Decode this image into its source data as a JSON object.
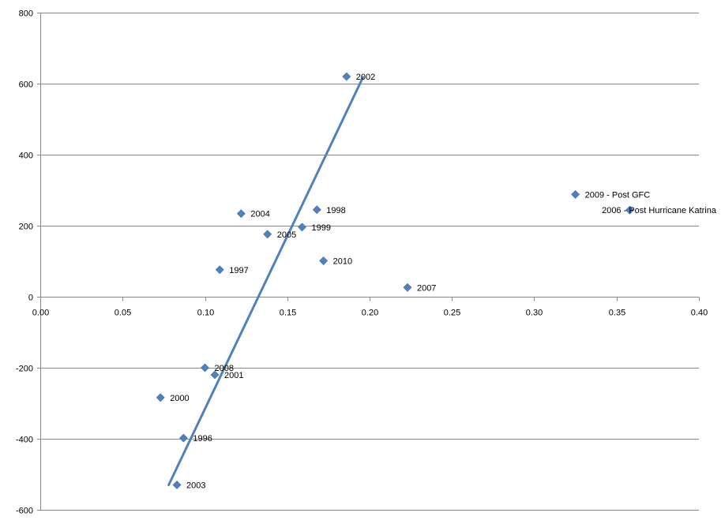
{
  "chart_data": {
    "type": "scatter",
    "xlim": [
      0,
      0.4
    ],
    "ylim": [
      -600,
      800
    ],
    "x_ticks": [
      "0.00",
      "0.05",
      "0.10",
      "0.15",
      "0.20",
      "0.25",
      "0.30",
      "0.35",
      "0.40"
    ],
    "y_ticks": [
      "800",
      "600",
      "400",
      "200",
      "0",
      "-200",
      "-400",
      "-600"
    ],
    "grid": "horizontal",
    "marker_color": "#4F81BD",
    "trendline_color": "#4F81BD",
    "points": [
      {
        "x": 0.186,
        "y": 620,
        "label": "2002"
      },
      {
        "x": 0.325,
        "y": 288,
        "label": "2009 - Post GFC"
      },
      {
        "x": 0.358,
        "y": 244,
        "label": "2006 - Post Hurricane Katrina"
      },
      {
        "x": 0.122,
        "y": 234,
        "label": "2004"
      },
      {
        "x": 0.168,
        "y": 245,
        "label": "1998"
      },
      {
        "x": 0.159,
        "y": 196,
        "label": "1999"
      },
      {
        "x": 0.138,
        "y": 176,
        "label": "2005"
      },
      {
        "x": 0.172,
        "y": 101,
        "label": "2010"
      },
      {
        "x": 0.109,
        "y": 76,
        "label": "1997"
      },
      {
        "x": 0.223,
        "y": 26,
        "label": "2007"
      },
      {
        "x": 0.1,
        "y": -200,
        "label": "2008"
      },
      {
        "x": 0.106,
        "y": -220,
        "label": "2001"
      },
      {
        "x": 0.073,
        "y": -284,
        "label": "2000"
      },
      {
        "x": 0.087,
        "y": -398,
        "label": "1996"
      },
      {
        "x": 0.083,
        "y": -530,
        "label": "2003"
      }
    ],
    "trendline": [
      {
        "x": 0.078,
        "y": -530
      },
      {
        "x": 0.196,
        "y": 618
      }
    ]
  }
}
